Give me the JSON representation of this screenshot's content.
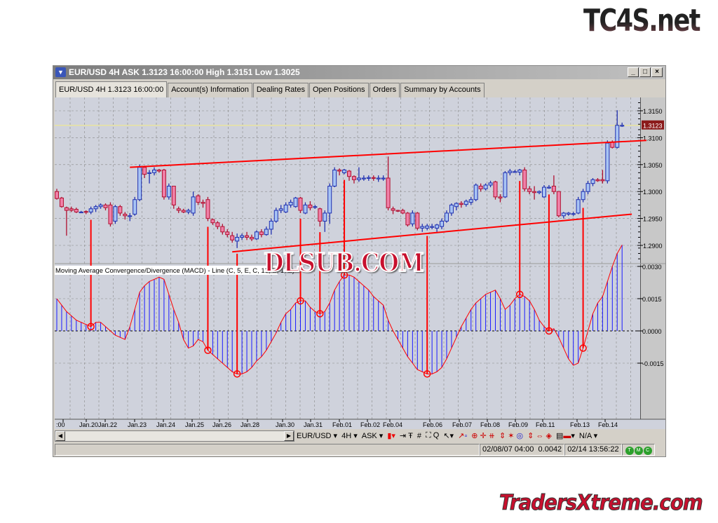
{
  "logos": {
    "top": "TC4S.net",
    "bottom": "TradersXtreme.com",
    "watermark": "DLSUB.COM"
  },
  "window": {
    "title": "EUR/USD 4H ASK 1.3123 16:00:00 High 1.3151 Low 1.3025",
    "buttons": [
      "_",
      "□",
      "×"
    ]
  },
  "tabs": [
    {
      "label": "EUR/USD 4H 1.3123 16:00:00",
      "active": true
    },
    {
      "label": "Account(s) Information"
    },
    {
      "label": "Dealing Rates"
    },
    {
      "label": "Open Positions"
    },
    {
      "label": "Orders"
    },
    {
      "label": "Summary by Accounts"
    }
  ],
  "toolbar": {
    "symbol": "EUR/USD ▾",
    "period": "4H ▾",
    "side": "ASK ▾",
    "items": [
      "candle-icon",
      "crosshair-icon",
      "grid-icon",
      "zoom-icon",
      "cursor-icon",
      "draw-icon",
      "zoom-in-icon",
      "fibo-icon",
      "settings-icon"
    ],
    "na": "N/A ▾"
  },
  "status": {
    "cursor_time": "02/08/07 04:00",
    "cursor_value": "0.0042",
    "clock": "02/14 13:56:22",
    "leds": [
      "T",
      "M",
      "C"
    ]
  },
  "chart_data": {
    "type": "candlestick",
    "symbol": "EUR/USD",
    "timeframe": "4H",
    "current_price": 1.3123,
    "price_axis": {
      "ticks": [
        "1.3150",
        "1.3100",
        "1.3050",
        "1.3000",
        "1.2950",
        "1.2900"
      ],
      "range": [
        1.287,
        1.3175
      ]
    },
    "macd_axis": {
      "ticks": [
        "0.0030",
        "0.0015",
        "0.0000",
        "-0.0015"
      ],
      "range": [
        -0.0023,
        0.0041
      ]
    },
    "indicator_label": "Moving Average Convergence/Divergence (MACD) - Line (C, 5, E, C, 13, E, 1, E)",
    "x_labels": [
      ":00",
      "Jan.20",
      "Jan.22",
      "Jan.23",
      "Jan.24",
      "Jan.25",
      "Jan.26",
      "Jan.28",
      "Jan.30",
      "Jan.31",
      "Feb.01",
      "Feb.02",
      "Feb.04",
      "Feb.06",
      "Feb.07",
      "Feb.08",
      "Feb.09",
      "Feb.11",
      "Feb.13",
      "Feb.14"
    ],
    "ohlc": [
      [
        1.3,
        1.3005,
        1.2985,
        1.2987
      ],
      [
        1.2988,
        1.299,
        1.297,
        1.2972
      ],
      [
        1.297,
        1.2972,
        1.2918,
        1.2965
      ],
      [
        1.2968,
        1.2972,
        1.2962,
        1.2965
      ],
      [
        1.2967,
        1.297,
        1.296,
        1.2962
      ],
      [
        1.2962,
        1.2964,
        1.296,
        1.2962
      ],
      [
        1.2963,
        1.2965,
        1.2958,
        1.2962
      ],
      [
        1.2962,
        1.2972,
        1.2958,
        1.2968
      ],
      [
        1.2968,
        1.2975,
        1.2962,
        1.2972
      ],
      [
        1.2972,
        1.2978,
        1.2968,
        1.2975
      ],
      [
        1.2975,
        1.2978,
        1.2965,
        1.297
      ],
      [
        1.2975,
        1.298,
        1.2935,
        1.294
      ],
      [
        1.2945,
        1.2975,
        1.294,
        1.2972
      ],
      [
        1.2972,
        1.2975,
        1.2955,
        1.296
      ],
      [
        1.2958,
        1.2962,
        1.2948,
        1.2955
      ],
      [
        1.2955,
        1.296,
        1.2945,
        1.2955
      ],
      [
        1.2958,
        1.299,
        1.2955,
        1.2985
      ],
      [
        1.2985,
        1.305,
        1.2982,
        1.3045
      ],
      [
        1.3045,
        1.3048,
        1.3025,
        1.3032
      ],
      [
        1.3035,
        1.304,
        1.3015,
        1.3035
      ],
      [
        1.3035,
        1.3045,
        1.303,
        1.304
      ],
      [
        1.304,
        1.3042,
        1.3035,
        1.3038
      ],
      [
        1.304,
        1.3042,
        1.2985,
        1.299
      ],
      [
        1.299,
        1.3015,
        1.2985,
        1.301
      ],
      [
        1.301,
        1.301,
        1.2968,
        1.2975
      ],
      [
        1.2968,
        1.2972,
        1.296,
        1.2965
      ],
      [
        1.2965,
        1.2968,
        1.296,
        1.2962
      ],
      [
        1.2962,
        1.2968,
        1.2958,
        1.2965
      ],
      [
        1.296,
        1.3,
        1.2955,
        1.299
      ],
      [
        1.2992,
        1.2995,
        1.2975,
        1.298
      ],
      [
        1.298,
        1.2985,
        1.297,
        1.2978
      ],
      [
        1.2985,
        1.299,
        1.2945,
        1.295
      ],
      [
        1.2948,
        1.295,
        1.2938,
        1.2942
      ],
      [
        1.2942,
        1.2945,
        1.293,
        1.2935
      ],
      [
        1.2935,
        1.294,
        1.292,
        1.2925
      ],
      [
        1.2925,
        1.293,
        1.2915,
        1.292
      ],
      [
        1.2918,
        1.2925,
        1.2905,
        1.291
      ],
      [
        1.2908,
        1.2922,
        1.2895,
        1.2915
      ],
      [
        1.2915,
        1.2922,
        1.291,
        1.2918
      ],
      [
        1.2918,
        1.2925,
        1.291,
        1.2915
      ],
      [
        1.2915,
        1.292,
        1.2908,
        1.2912
      ],
      [
        1.2912,
        1.2928,
        1.291,
        1.2925
      ],
      [
        1.2925,
        1.293,
        1.2915,
        1.292
      ],
      [
        1.292,
        1.2935,
        1.2918,
        1.293
      ],
      [
        1.293,
        1.295,
        1.292,
        1.2945
      ],
      [
        1.2945,
        1.297,
        1.2942,
        1.2965
      ],
      [
        1.2965,
        1.2975,
        1.296,
        1.2968
      ],
      [
        1.2962,
        1.298,
        1.296,
        1.2975
      ],
      [
        1.2975,
        1.2985,
        1.297,
        1.298
      ],
      [
        1.2972,
        1.299,
        1.297,
        1.2988
      ],
      [
        1.2988,
        1.299,
        1.296,
        1.2965
      ],
      [
        1.296,
        1.298,
        1.2958,
        1.2975
      ],
      [
        1.2975,
        1.2982,
        1.2965,
        1.297
      ],
      [
        1.2972,
        1.2975,
        1.2968,
        1.2972
      ],
      [
        1.2968,
        1.297,
        1.2935,
        1.2945
      ],
      [
        1.2945,
        1.2965,
        1.2925,
        1.296
      ],
      [
        1.296,
        1.3015,
        1.294,
        1.301
      ],
      [
        1.301,
        1.3045,
        1.3008,
        1.304
      ],
      [
        1.304,
        1.3043,
        1.303,
        1.3038
      ],
      [
        1.3035,
        1.3042,
        1.3032,
        1.304
      ],
      [
        1.3038,
        1.304,
        1.302,
        1.3028
      ],
      [
        1.3028,
        1.303,
        1.3015,
        1.3022
      ],
      [
        1.3022,
        1.3045,
        1.3018,
        1.3025
      ],
      [
        1.3025,
        1.303,
        1.302,
        1.3025
      ],
      [
        1.3025,
        1.303,
        1.302,
        1.3026
      ],
      [
        1.3026,
        1.303,
        1.302,
        1.3025
      ],
      [
        1.3025,
        1.303,
        1.3018,
        1.3025
      ],
      [
        1.3025,
        1.303,
        1.302,
        1.3025
      ],
      [
        1.3025,
        1.3065,
        1.2965,
        1.297
      ],
      [
        1.2968,
        1.2972,
        1.2958,
        1.2965
      ],
      [
        1.2965,
        1.2966,
        1.2962,
        1.2964
      ],
      [
        1.2965,
        1.2968,
        1.2958,
        1.296
      ],
      [
        1.296,
        1.2962,
        1.2935,
        1.2938
      ],
      [
        1.294,
        1.2965,
        1.2935,
        1.296
      ],
      [
        1.296,
        1.2962,
        1.2928,
        1.2932
      ],
      [
        1.2932,
        1.294,
        1.2925,
        1.2935
      ],
      [
        1.2932,
        1.294,
        1.2928,
        1.2936
      ],
      [
        1.2935,
        1.294,
        1.293,
        1.2935
      ],
      [
        1.2932,
        1.294,
        1.2925,
        1.2938
      ],
      [
        1.2935,
        1.295,
        1.293,
        1.2945
      ],
      [
        1.2945,
        1.2965,
        1.2942,
        1.296
      ],
      [
        1.296,
        1.2978,
        1.2955,
        1.2975
      ],
      [
        1.2972,
        1.298,
        1.2965,
        1.2978
      ],
      [
        1.2978,
        1.2982,
        1.297,
        1.2976
      ],
      [
        1.2976,
        1.2985,
        1.2972,
        1.2982
      ],
      [
        1.298,
        1.299,
        1.2975,
        1.2985
      ],
      [
        1.2985,
        1.3015,
        1.2982,
        1.3012
      ],
      [
        1.301,
        1.3015,
        1.3,
        1.3005
      ],
      [
        1.3005,
        1.3015,
        1.3002,
        1.3012
      ],
      [
        1.3012,
        1.302,
        1.3008,
        1.3016
      ],
      [
        1.3018,
        1.302,
        1.2985,
        1.299
      ],
      [
        1.299,
        1.2995,
        1.298,
        1.2988
      ],
      [
        1.299,
        1.3038,
        1.2988,
        1.3035
      ],
      [
        1.3035,
        1.3042,
        1.303,
        1.3038
      ],
      [
        1.3037,
        1.304,
        1.3035,
        1.3037
      ],
      [
        1.3036,
        1.3042,
        1.303,
        1.304
      ],
      [
        1.304,
        1.3045,
        1.3,
        1.3005
      ],
      [
        1.3005,
        1.301,
        1.2995,
        1.3
      ],
      [
        1.3,
        1.301,
        1.2985,
        1.2998
      ],
      [
        1.2998,
        1.3002,
        1.2995,
        1.3
      ],
      [
        1.299,
        1.3012,
        1.2988,
        1.3008
      ],
      [
        1.3008,
        1.3012,
        1.3005,
        1.3008
      ],
      [
        1.301,
        1.303,
        1.2995,
        1.3
      ],
      [
        1.3,
        1.3,
        1.2952,
        1.2955
      ],
      [
        1.2955,
        1.2962,
        1.295,
        1.296
      ],
      [
        1.2958,
        1.2962,
        1.2955,
        1.296
      ],
      [
        1.2958,
        1.2962,
        1.2955,
        1.2959
      ],
      [
        1.296,
        1.299,
        1.2958,
        1.2985
      ],
      [
        1.2985,
        1.3005,
        1.298,
        1.3
      ],
      [
        1.3,
        1.302,
        1.2995,
        1.3015
      ],
      [
        1.3015,
        1.3025,
        1.301,
        1.3022
      ],
      [
        1.3022,
        1.3025,
        1.3018,
        1.302
      ],
      [
        1.3022,
        1.304,
        1.3015,
        1.302
      ],
      [
        1.302,
        1.3095,
        1.3015,
        1.309
      ],
      [
        1.3092,
        1.3095,
        1.308,
        1.3082
      ],
      [
        1.3082,
        1.3151,
        1.308,
        1.3123
      ],
      [
        1.3123,
        1.3128,
        1.312,
        1.3123
      ]
    ],
    "macd": [
      0.0015,
      0.0012,
      0.0009,
      0.0007,
      0.0005,
      0.0004,
      0.0003,
      0.0002,
      0.0004,
      0.0004,
      0.0002,
      0.0,
      -0.0002,
      -0.0003,
      -0.0004,
      0.0002,
      0.001,
      0.0018,
      0.0021,
      0.0023,
      0.0024,
      0.0025,
      0.0024,
      0.0017,
      0.001,
      0.0004,
      -0.0004,
      -0.0008,
      -0.0007,
      -0.0004,
      -0.0005,
      -0.0009,
      -0.0011,
      -0.0013,
      -0.0015,
      -0.0017,
      -0.0019,
      -0.002,
      -0.002,
      -0.0019,
      -0.0017,
      -0.0014,
      -0.0012,
      -0.0009,
      -0.0005,
      -0.0001,
      0.0004,
      0.0008,
      0.001,
      0.0013,
      0.0014,
      0.0014,
      0.0011,
      0.0009,
      0.0008,
      0.0009,
      0.0013,
      0.0019,
      0.0023,
      0.0026,
      0.0026,
      0.0025,
      0.0023,
      0.0021,
      0.0019,
      0.0016,
      0.0014,
      0.0012,
      0.0005,
      0.0,
      -0.0004,
      -0.0008,
      -0.0012,
      -0.0015,
      -0.0018,
      -0.0019,
      -0.002,
      -0.002,
      -0.0019,
      -0.0017,
      -0.0013,
      -0.0008,
      -0.0003,
      0.0002,
      0.0006,
      0.001,
      0.0013,
      0.0015,
      0.0017,
      0.0018,
      0.0019,
      0.0015,
      0.001,
      0.0012,
      0.0015,
      0.0017,
      0.0016,
      0.0014,
      0.001,
      0.0005,
      0.0002,
      0.0,
      0.0001,
      -0.0003,
      -0.0008,
      -0.0013,
      -0.0016,
      -0.0015,
      -0.0008,
      0.0,
      0.0008,
      0.0013,
      0.0016,
      0.0023,
      0.003,
      0.0036,
      0.004
    ],
    "trendlines": [
      {
        "from": [
          15,
          1.3045
        ],
        "to": [
          121,
          1.3095
        ]
      },
      {
        "from": [
          36,
          1.2888
        ],
        "to": [
          118,
          1.2958
        ]
      }
    ],
    "signal_markers": [
      7,
      31,
      37,
      50,
      54,
      59,
      76,
      95,
      101,
      108
    ],
    "colors": {
      "bull": "#a8c4f4",
      "bull_edge": "#2030b0",
      "bear": "#f080a8",
      "bear_edge": "#b01030",
      "macd_line": "#ff0000",
      "macd_hist": "#1a1aff",
      "trend": "#ff0000",
      "price_line": "#e8e4a0"
    }
  }
}
